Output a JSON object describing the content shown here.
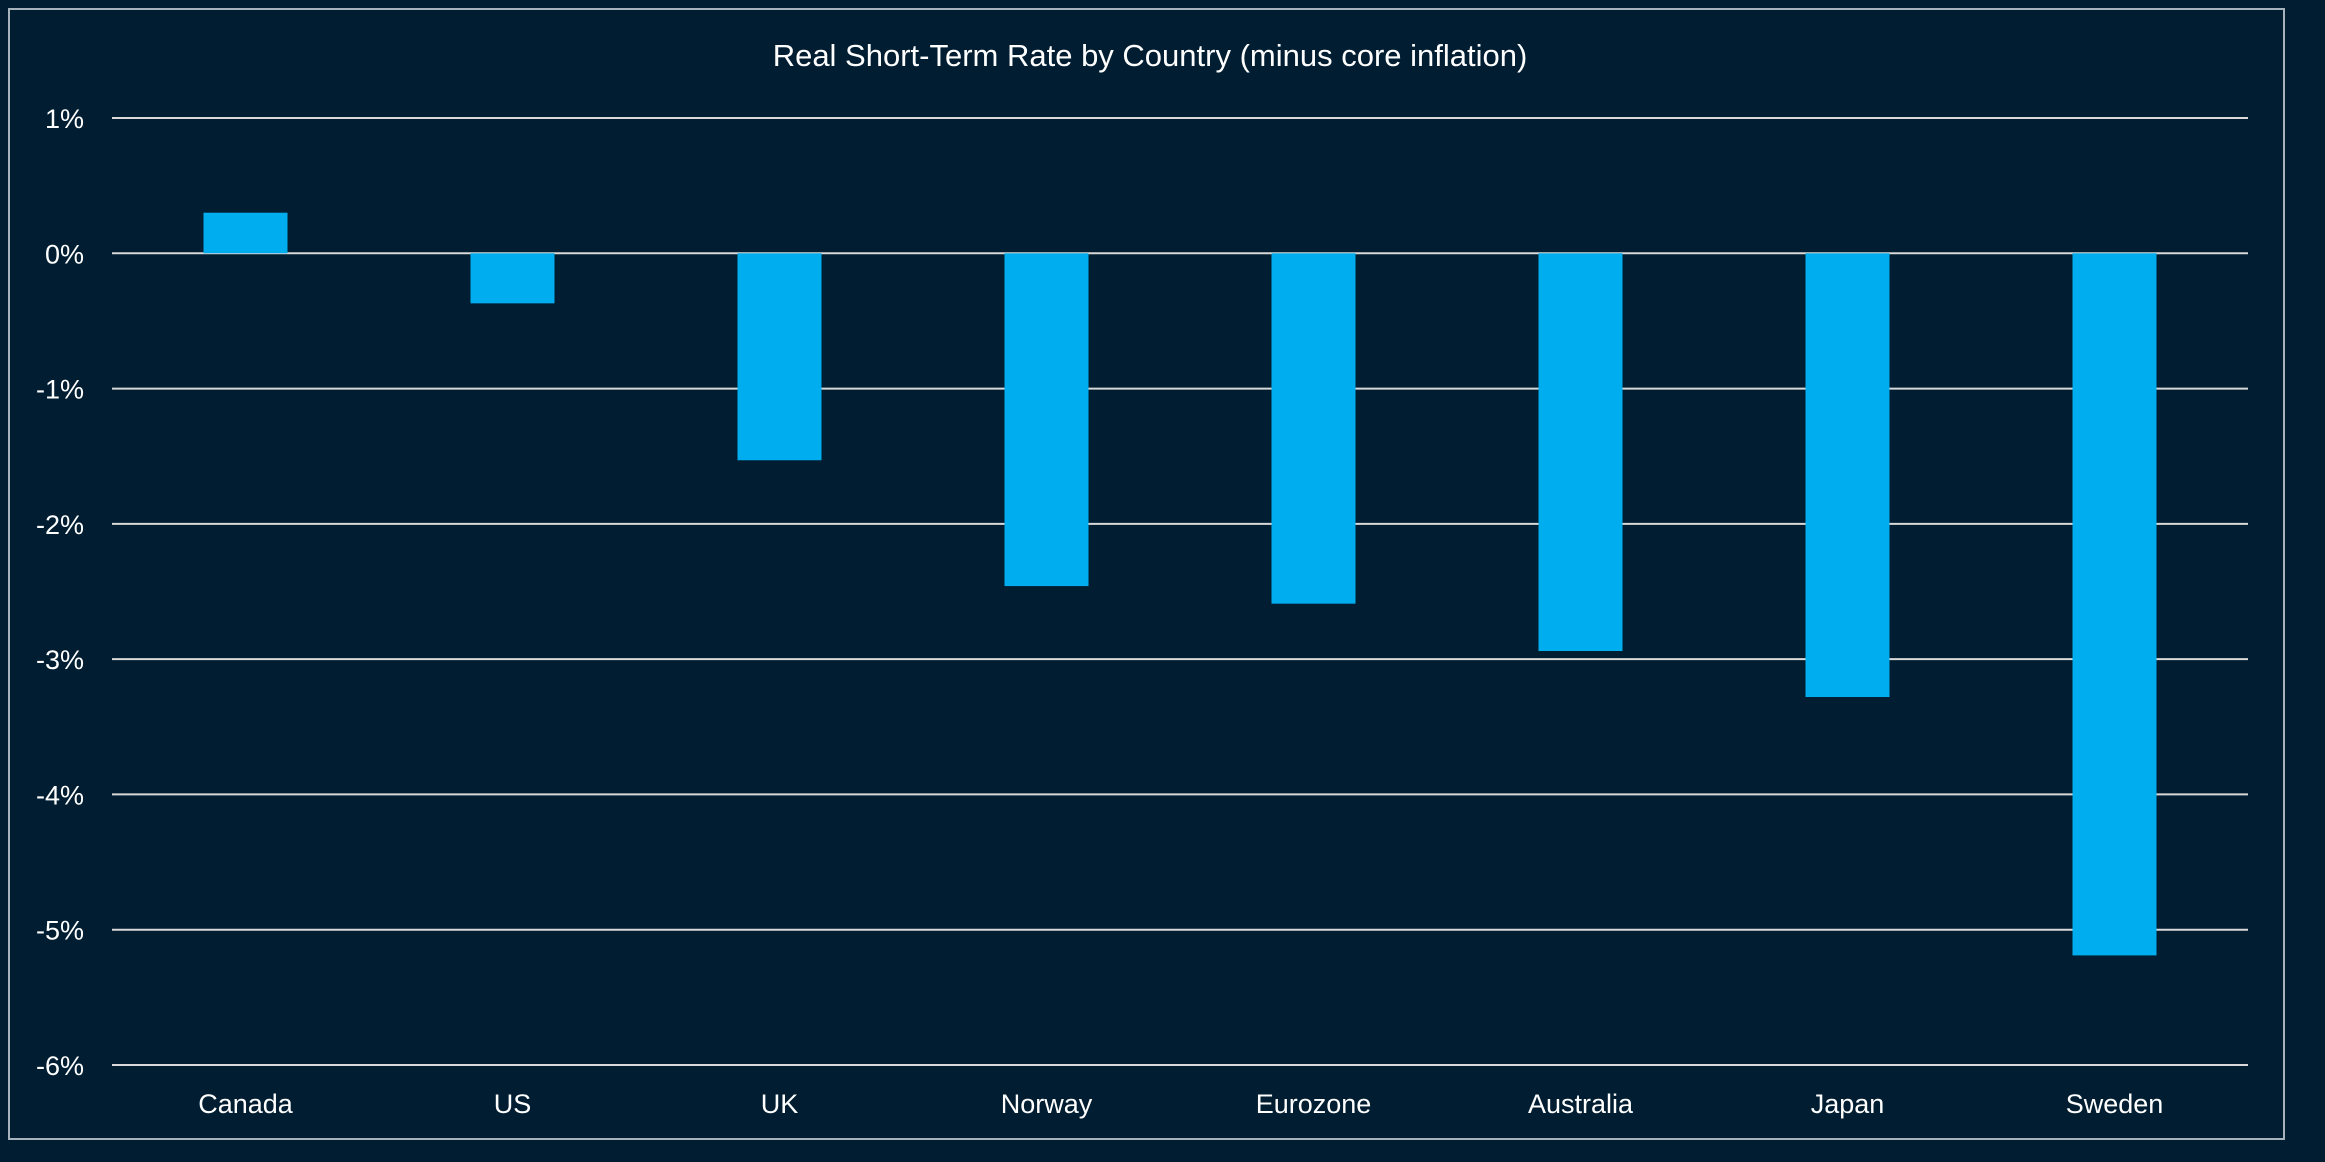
{
  "chart_data": {
    "type": "bar",
    "title": "Real Short-Term Rate by Country (minus core inflation)",
    "xlabel": "",
    "ylabel": "",
    "categories": [
      "Canada",
      "US",
      "UK",
      "Norway",
      "Eurozone",
      "Australia",
      "Japan",
      "Sweden"
    ],
    "values": [
      0.3,
      -0.37,
      -1.53,
      -2.46,
      -2.59,
      -2.94,
      -3.28,
      -5.19
    ],
    "ylim": [
      -6,
      1
    ],
    "yticks": [
      1,
      0,
      -1,
      -2,
      -3,
      -4,
      -5,
      -6
    ],
    "ytick_labels": [
      "1%",
      "0%",
      "-1%",
      "-2%",
      "-3%",
      "-4%",
      "-5%",
      "-6%"
    ],
    "grid": true,
    "legend": "none",
    "colors": {
      "background": "#001d31",
      "bar": "#00aeef",
      "gridline": "#d9d9d9",
      "text": "#ffffff",
      "border": "#a6b3bd"
    }
  }
}
